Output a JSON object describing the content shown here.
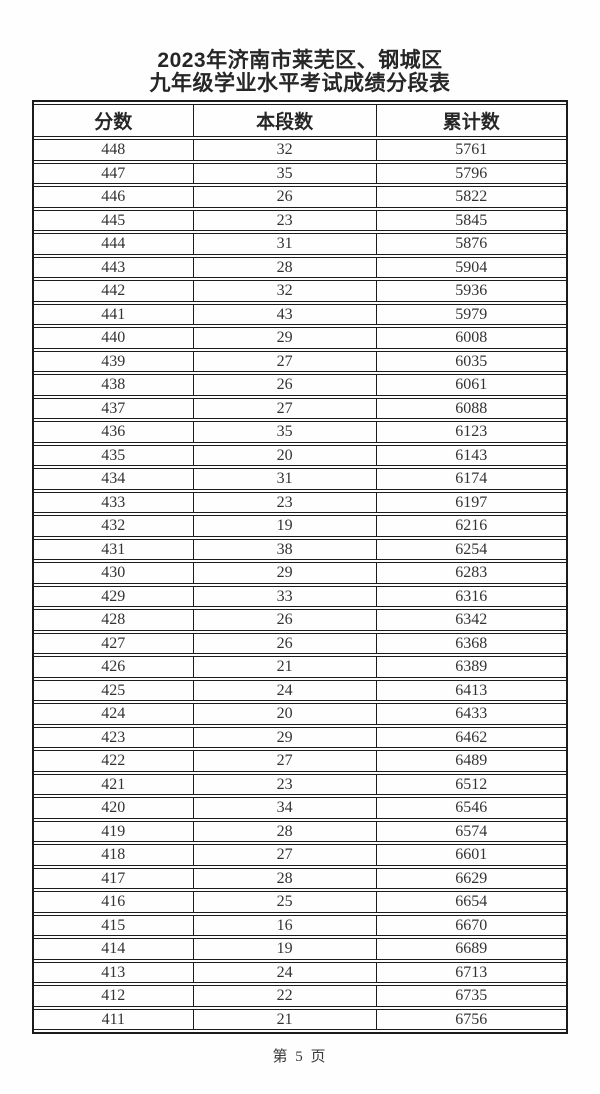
{
  "page": {
    "title_line1": "2023年济南市莱芜区、钢城区",
    "title_line2": "九年级学业水平考试成绩分段表",
    "footer": "第 5 页"
  },
  "colors": {
    "background": "#fefefe",
    "border": "#1c1c1c",
    "text": "#2e2e2e"
  },
  "table": {
    "columns": [
      "分数",
      "本段数",
      "累计数"
    ],
    "rows": [
      [
        448,
        32,
        5761
      ],
      [
        447,
        35,
        5796
      ],
      [
        446,
        26,
        5822
      ],
      [
        445,
        23,
        5845
      ],
      [
        444,
        31,
        5876
      ],
      [
        443,
        28,
        5904
      ],
      [
        442,
        32,
        5936
      ],
      [
        441,
        43,
        5979
      ],
      [
        440,
        29,
        6008
      ],
      [
        439,
        27,
        6035
      ],
      [
        438,
        26,
        6061
      ],
      [
        437,
        27,
        6088
      ],
      [
        436,
        35,
        6123
      ],
      [
        435,
        20,
        6143
      ],
      [
        434,
        31,
        6174
      ],
      [
        433,
        23,
        6197
      ],
      [
        432,
        19,
        6216
      ],
      [
        431,
        38,
        6254
      ],
      [
        430,
        29,
        6283
      ],
      [
        429,
        33,
        6316
      ],
      [
        428,
        26,
        6342
      ],
      [
        427,
        26,
        6368
      ],
      [
        426,
        21,
        6389
      ],
      [
        425,
        24,
        6413
      ],
      [
        424,
        20,
        6433
      ],
      [
        423,
        29,
        6462
      ],
      [
        422,
        27,
        6489
      ],
      [
        421,
        23,
        6512
      ],
      [
        420,
        34,
        6546
      ],
      [
        419,
        28,
        6574
      ],
      [
        418,
        27,
        6601
      ],
      [
        417,
        28,
        6629
      ],
      [
        416,
        25,
        6654
      ],
      [
        415,
        16,
        6670
      ],
      [
        414,
        19,
        6689
      ],
      [
        413,
        24,
        6713
      ],
      [
        412,
        22,
        6735
      ],
      [
        411,
        21,
        6756
      ]
    ]
  }
}
